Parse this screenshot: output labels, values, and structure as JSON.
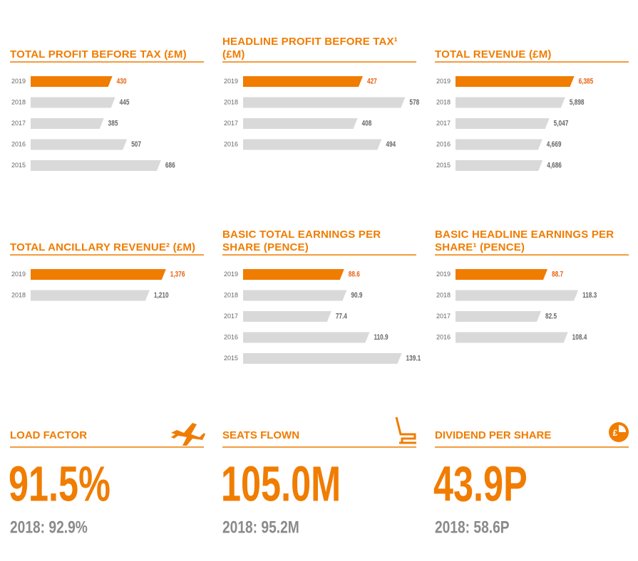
{
  "chart_data": [
    {
      "type": "hbar",
      "title": "TOTAL PROFIT BEFORE TAX (£M)",
      "categories": [
        "2019",
        "2018",
        "2017",
        "2016",
        "2015"
      ],
      "values": [
        430,
        445,
        385,
        507,
        686
      ],
      "colors": [
        "#f07c00",
        "#d9d9d9",
        "#d9d9d9",
        "#d9d9d9",
        "#d9d9d9"
      ],
      "xlim": [
        0,
        900
      ]
    },
    {
      "type": "hbar",
      "title": "HEADLINE PROFIT BEFORE TAX¹ (£M)",
      "categories": [
        "2019",
        "2018",
        "2017",
        "2016"
      ],
      "values": [
        427,
        578,
        408,
        494
      ],
      "colors": [
        "#f07c00",
        "#d9d9d9",
        "#d9d9d9",
        "#d9d9d9"
      ],
      "xlim": [
        0,
        610
      ]
    },
    {
      "type": "hbar",
      "title": "TOTAL REVENUE (£M)",
      "categories": [
        "2019",
        "2018",
        "2017",
        "2016",
        "2015"
      ],
      "values": [
        6385,
        5898,
        5047,
        4669,
        4686
      ],
      "value_labels": [
        "6,385",
        "5,898",
        "5,047",
        "4,669",
        "4,686"
      ],
      "colors": [
        "#f07c00",
        "#d9d9d9",
        "#d9d9d9",
        "#d9d9d9",
        "#d9d9d9"
      ],
      "xlim": [
        0,
        9200
      ]
    },
    {
      "type": "hbar",
      "title": "TOTAL ANCILLARY REVENUE² (£M)",
      "categories": [
        "2019",
        "2018"
      ],
      "values": [
        1376,
        1210
      ],
      "value_labels": [
        "1,376",
        "1,210"
      ],
      "colors": [
        "#f07c00",
        "#d9d9d9"
      ],
      "xlim": [
        0,
        1740
      ]
    },
    {
      "type": "hbar",
      "title": "BASIC TOTAL EARNINGS PER SHARE (PENCE)",
      "categories": [
        "2019",
        "2018",
        "2017",
        "2016",
        "2015"
      ],
      "values": [
        88.6,
        90.9,
        77.4,
        110.9,
        139.1
      ],
      "colors": [
        "#f07c00",
        "#d9d9d9",
        "#d9d9d9",
        "#d9d9d9",
        "#d9d9d9"
      ],
      "xlim": [
        0,
        150
      ]
    },
    {
      "type": "hbar",
      "title": "BASIC HEADLINE EARNINGS PER SHARE¹ (PENCE)",
      "categories": [
        "2019",
        "2018",
        "2017",
        "2016"
      ],
      "values": [
        88.7,
        118.3,
        82.5,
        108.4
      ],
      "colors": [
        "#f07c00",
        "#d9d9d9",
        "#d9d9d9",
        "#d9d9d9"
      ],
      "xlim": [
        0,
        165
      ]
    }
  ],
  "kpis": [
    {
      "title": "LOAD FACTOR",
      "value": "91.5%",
      "comparison": "2018: 92.9%"
    },
    {
      "title": "SEATS FLOWN",
      "value": "105.0M",
      "comparison": "2018: 95.2M"
    },
    {
      "title": "DIVIDEND PER SHARE",
      "value": "43.9P",
      "comparison": "2018: 58.6P"
    }
  ]
}
